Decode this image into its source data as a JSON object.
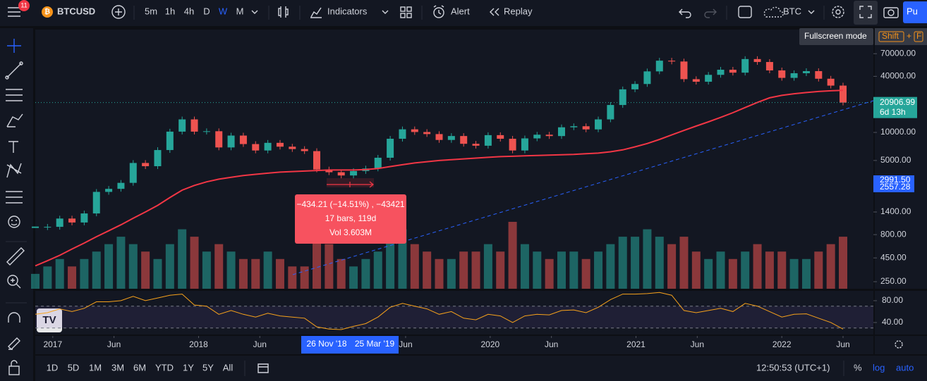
{
  "toolbar": {
    "notifications": "11",
    "symbol": "BTCUSD",
    "intervals": [
      "5m",
      "1h",
      "4h",
      "D",
      "W",
      "M"
    ],
    "indicators": "Indicators",
    "alert": "Alert",
    "replay": "Replay",
    "compare_symbol": "BTC",
    "publish": "Pu",
    "tooltip": {
      "text": "Fullscreen mode",
      "key1": "Shift",
      "plus": "+",
      "key2": "F"
    }
  },
  "chart_data": {
    "type": "candlestick",
    "log_scale": true,
    "close": [
      960,
      970,
      1190,
      1080,
      1350,
      2300,
      2480,
      2875,
      4700,
      4340,
      6470,
      10200,
      13800,
      10200,
      10300,
      6900,
      9250,
      7500,
      6400,
      7730,
      7030,
      6630,
      6300,
      4000,
      3740,
      3450,
      3850,
      4100,
      5350,
      8550,
      10800,
      10100,
      9600,
      8300,
      9150,
      7550,
      7200,
      9350,
      8550,
      6400,
      8630,
      9450,
      9140,
      11350,
      11650,
      10780,
      13800,
      19700,
      29000,
      33100,
      45200,
      58900,
      57700,
      37300,
      35000,
      41500,
      47100,
      43800,
      61300,
      57000,
      46300,
      38500,
      43200,
      45500,
      37700,
      31800,
      20900
    ],
    "ma": [
      370,
      420,
      480,
      560,
      650,
      760,
      880,
      1020,
      1200,
      1400,
      1650,
      2000,
      2400,
      2700,
      2950,
      3150,
      3300,
      3450,
      3550,
      3650,
      3750,
      3800,
      3850,
      3900,
      3950,
      3950,
      3950,
      4000,
      4100,
      4300,
      4500,
      4700,
      4850,
      5000,
      5100,
      5200,
      5300,
      5400,
      5500,
      5550,
      5600,
      5650,
      5700,
      5750,
      5800,
      5900,
      6000,
      6200,
      6500,
      7000,
      7600,
      8400,
      9400,
      10500,
      11700,
      13000,
      14500,
      16300,
      18500,
      21000,
      23500,
      25000,
      26000,
      26800,
      27500,
      28000,
      28300
    ],
    "volume": [
      2,
      3,
      4,
      3,
      4,
      5,
      6,
      7,
      6,
      5,
      4,
      6,
      8,
      7,
      5,
      6,
      5,
      4,
      4,
      5,
      4,
      3,
      3,
      7,
      6,
      4,
      3,
      4,
      5,
      7,
      8,
      6,
      5,
      4,
      4,
      5,
      5,
      6,
      5,
      9,
      6,
      5,
      4,
      5,
      5,
      4,
      5,
      6,
      7,
      7,
      8,
      7,
      6,
      7,
      5,
      4,
      5,
      4,
      5,
      6,
      5,
      5,
      4,
      4,
      5,
      6,
      7
    ],
    "rsi": [
      55,
      58,
      65,
      60,
      66,
      78,
      78,
      80,
      88,
      80,
      85,
      90,
      92,
      72,
      70,
      55,
      62,
      55,
      50,
      57,
      52,
      50,
      48,
      32,
      28,
      27,
      33,
      38,
      50,
      68,
      75,
      70,
      65,
      55,
      60,
      48,
      45,
      55,
      52,
      40,
      52,
      55,
      54,
      62,
      63,
      58,
      68,
      82,
      92,
      92,
      93,
      95,
      90,
      62,
      58,
      62,
      66,
      60,
      75,
      70,
      60,
      50,
      55,
      56,
      48,
      40,
      28
    ],
    "up_color": "#26a69a",
    "down_color": "#ef5350",
    "ma_color": "#f23645",
    "rsi_color": "#f7a21b",
    "ylim": [
      210,
      127000
    ],
    "yticks": [
      {
        "value": 70000,
        "label": "70000.00"
      },
      {
        "value": 40000,
        "label": "40000.00"
      },
      {
        "value": 10000,
        "label": "10000.00"
      },
      {
        "value": 5000,
        "label": "5000.00"
      },
      {
        "value": 1400,
        "label": "1400.00"
      },
      {
        "value": 800,
        "label": "800.00"
      },
      {
        "value": 450,
        "label": "450.00"
      },
      {
        "value": 250,
        "label": "250.00"
      }
    ],
    "xlim": [
      2016.88,
      2022.42
    ],
    "xticks": [
      2017,
      {
        "value": 2017.42,
        "label": "Jun"
      },
      2018,
      {
        "value": 2018.42,
        "label": "Jun"
      },
      {
        "value": 2019.42,
        "label": "Jun"
      },
      2020,
      {
        "value": 2020.42,
        "label": "Jun"
      },
      2021,
      {
        "value": 2021.42,
        "label": "Jun"
      },
      2022,
      {
        "value": 2022.42,
        "label": "Jun"
      }
    ],
    "rsi_lim": [
      18,
      98
    ],
    "rsi_ticks": [
      {
        "value": 80,
        "label": "80.00"
      },
      {
        "value": 40,
        "label": "40.00"
      }
    ],
    "rsi_levels": [
      70,
      30
    ],
    "last_price_label": "20906.99",
    "countdown": "6d 13h",
    "trend_labels": [
      "2991.50",
      "2557.28"
    ],
    "measure": {
      "line1": "−434.21 (−14.51%) , −43421",
      "line2": "17 bars, 119d",
      "line3": "Vol 3.603M"
    },
    "range_start": "26 Nov '18",
    "range_end": "25 Mar '19"
  },
  "bottom_bar": {
    "ranges": [
      "1D",
      "5D",
      "1M",
      "3M",
      "6M",
      "YTD",
      "1Y",
      "5Y",
      "All"
    ],
    "clock": "12:50:53 (UTC+1)",
    "percent": "%",
    "log": "log",
    "auto": "auto"
  }
}
